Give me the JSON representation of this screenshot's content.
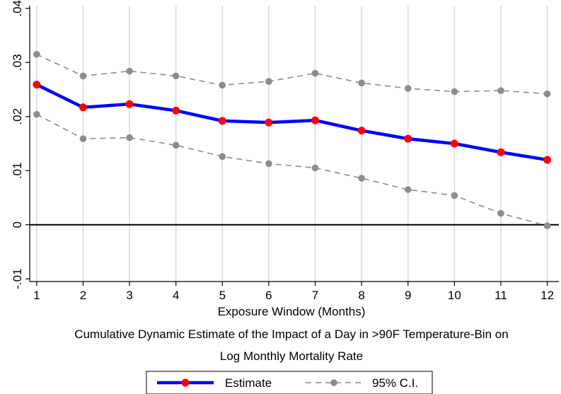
{
  "chart_data": {
    "type": "line",
    "x": [
      1,
      2,
      3,
      4,
      5,
      6,
      7,
      8,
      9,
      10,
      11,
      12
    ],
    "series": [
      {
        "name": "Estimate",
        "color": "#0000ff",
        "marker_color": "#ff0000",
        "values": [
          0.0259,
          0.0217,
          0.0223,
          0.0211,
          0.0192,
          0.0189,
          0.0193,
          0.0174,
          0.0159,
          0.015,
          0.0134,
          0.012
        ]
      },
      {
        "name": "95% C.I.",
        "color": "#8c8c8c",
        "marker_color": "#8c8c8c",
        "values": [
          0.0315,
          0.0275,
          0.0284,
          0.0275,
          0.0258,
          0.0265,
          0.028,
          0.0262,
          0.0252,
          0.0246,
          0.0248,
          0.0242
        ]
      },
      {
        "name": "",
        "color": "#8c8c8c",
        "marker_color": "#8c8c8c",
        "values": [
          0.0204,
          0.0159,
          0.0161,
          0.0147,
          0.0126,
          0.0113,
          0.0105,
          0.0086,
          0.0065,
          0.0054,
          0.0021,
          -0.0002
        ]
      }
    ],
    "xlabel": "Exposure Window (Months)",
    "xlim": [
      0.85,
      12.25
    ],
    "ylim": [
      -0.0105,
      0.0405
    ],
    "xticks": [
      1,
      2,
      3,
      4,
      5,
      6,
      7,
      8,
      9,
      10,
      11,
      12
    ],
    "yticks": [
      -0.01,
      0,
      0.01,
      0.02,
      0.03,
      0.04
    ],
    "ytick_labels": [
      "-.01",
      "0",
      ".01",
      ".02",
      ".03",
      ".04"
    ],
    "grid": "vertical",
    "reference_line": 0,
    "caption_lines": [
      "Cumulative Dynamic Estimate of the Impact of a Day in >90F Temperature-Bin on",
      "Log Monthly Mortality Rate"
    ],
    "legend": {
      "placement": "bottom-center",
      "entries": [
        {
          "label": "Estimate"
        },
        {
          "label": "95% C.I."
        }
      ]
    }
  }
}
